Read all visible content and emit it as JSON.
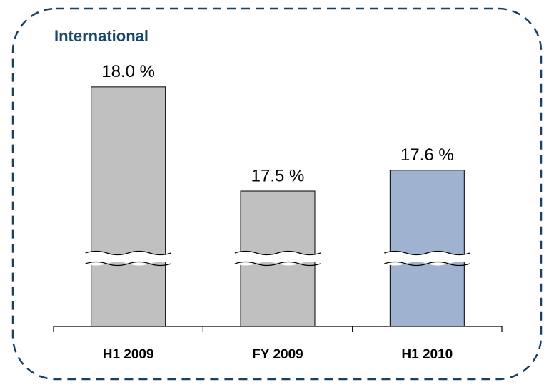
{
  "chart_data": {
    "type": "bar",
    "title": "International",
    "categories": [
      "H1 2009",
      "FY 2009",
      "H1 2010"
    ],
    "values": [
      18.0,
      17.5,
      17.6
    ],
    "value_labels": [
      "18.0 %",
      "17.5 %",
      "17.6 %"
    ],
    "colors": [
      "#c0c0c0",
      "#c0c0c0",
      "#9fb2d0"
    ],
    "ylim": [
      16.85,
      18.15
    ],
    "axis_break": true
  }
}
